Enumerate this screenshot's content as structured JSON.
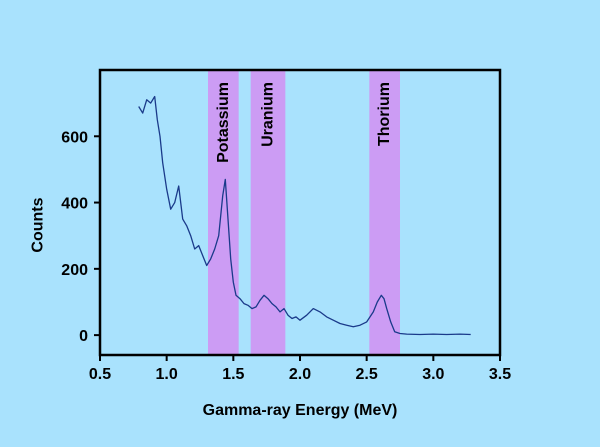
{
  "chart_data": {
    "type": "line",
    "title": "",
    "xlabel": "Gamma-ray Energy (MeV)",
    "ylabel": "Counts",
    "xlim": [
      0.5,
      3.5
    ],
    "ylim": [
      -60,
      800
    ],
    "xticks": [
      0.5,
      1.0,
      1.5,
      2.0,
      2.5,
      3.0,
      3.5
    ],
    "xtick_labels": [
      "0.5",
      "1.0",
      "1.5",
      "2.0",
      "2.5",
      "3.0",
      "3.5"
    ],
    "yticks": [
      0,
      200,
      400,
      600
    ],
    "ytick_labels": [
      "0",
      "200",
      "400",
      "600"
    ],
    "grid": false,
    "line_color": "#1a3a8a",
    "band_color": "#cc9cf4",
    "bands": [
      {
        "label": "Potassium",
        "x0": 1.31,
        "x1": 1.54
      },
      {
        "label": "Uranium",
        "x0": 1.63,
        "x1": 1.89
      },
      {
        "label": "Thorium",
        "x0": 2.52,
        "x1": 2.75
      }
    ],
    "series": [
      {
        "name": "",
        "x": [
          0.79,
          0.82,
          0.85,
          0.88,
          0.91,
          0.93,
          0.95,
          0.97,
          1.0,
          1.03,
          1.06,
          1.09,
          1.12,
          1.15,
          1.18,
          1.21,
          1.24,
          1.27,
          1.3,
          1.33,
          1.36,
          1.39,
          1.42,
          1.44,
          1.46,
          1.48,
          1.5,
          1.52,
          1.55,
          1.58,
          1.61,
          1.64,
          1.67,
          1.7,
          1.73,
          1.76,
          1.79,
          1.82,
          1.85,
          1.88,
          1.91,
          1.94,
          1.97,
          2.0,
          2.05,
          2.1,
          2.15,
          2.2,
          2.25,
          2.3,
          2.35,
          2.4,
          2.45,
          2.5,
          2.55,
          2.58,
          2.61,
          2.63,
          2.65,
          2.68,
          2.71,
          2.75,
          2.8,
          2.9,
          3.0,
          3.1,
          3.2,
          3.28
        ],
        "y": [
          690,
          670,
          710,
          700,
          720,
          650,
          600,
          520,
          440,
          380,
          400,
          450,
          350,
          330,
          300,
          260,
          270,
          240,
          210,
          230,
          260,
          300,
          420,
          470,
          350,
          230,
          160,
          120,
          110,
          95,
          90,
          80,
          85,
          105,
          120,
          110,
          95,
          85,
          70,
          80,
          60,
          50,
          55,
          45,
          60,
          80,
          70,
          55,
          45,
          35,
          30,
          25,
          30,
          40,
          70,
          100,
          120,
          110,
          80,
          40,
          10,
          5,
          3,
          2,
          3,
          2,
          3,
          2
        ]
      }
    ]
  }
}
